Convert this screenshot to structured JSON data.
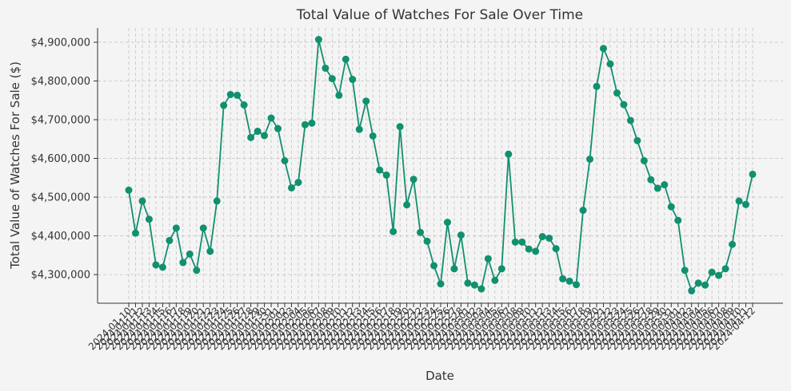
{
  "chart_data": {
    "type": "line",
    "title": "Total Value of Watches For Sale Over Time",
    "x_label": "Date",
    "y_label": "Total Value of Watches For Sale ($)",
    "color": "#11906f",
    "grid": true,
    "categories": [
      "2024-01-10",
      "2024-01-11",
      "2024-01-12",
      "2024-01-13",
      "2024-01-14",
      "2024-01-15",
      "2024-01-16",
      "2024-01-17",
      "2024-01-18",
      "2024-01-19",
      "2024-01-20",
      "2024-01-21",
      "2024-01-22",
      "2024-01-23",
      "2024-01-24",
      "2024-01-25",
      "2024-01-26",
      "2024-01-27",
      "2024-01-28",
      "2024-01-29",
      "2024-01-30",
      "2024-01-31",
      "2024-02-01",
      "2024-02-02",
      "2024-02-03",
      "2024-02-04",
      "2024-02-05",
      "2024-02-06",
      "2024-02-07",
      "2024-02-08",
      "2024-02-09",
      "2024-02-10",
      "2024-02-11",
      "2024-02-12",
      "2024-02-13",
      "2024-02-14",
      "2024-02-15",
      "2024-02-16",
      "2024-02-17",
      "2024-02-18",
      "2024-02-19",
      "2024-02-20",
      "2024-02-21",
      "2024-02-22",
      "2024-02-23",
      "2024-02-24",
      "2024-02-25",
      "2024-02-26",
      "2024-02-27",
      "2024-02-28",
      "2024-03-01",
      "2024-03-02",
      "2024-03-03",
      "2024-03-04",
      "2024-03-05",
      "2024-03-06",
      "2024-03-07",
      "2024-03-08",
      "2024-03-09",
      "2024-03-10",
      "2024-03-11",
      "2024-03-12",
      "2024-03-13",
      "2024-03-14",
      "2024-03-15",
      "2024-03-16",
      "2024-03-17",
      "2024-03-18",
      "2024-03-19",
      "2024-03-20",
      "2024-03-21",
      "2024-03-22",
      "2024-03-23",
      "2024-03-24",
      "2024-03-25",
      "2024-03-26",
      "2024-03-27",
      "2024-03-28",
      "2024-03-29",
      "2024-03-30",
      "2024-03-31",
      "2024-04-01",
      "2024-04-02",
      "2024-04-03",
      "2024-04-04",
      "2024-04-05",
      "2024-04-06",
      "2024-04-07",
      "2024-04-08",
      "2024-04-09",
      "2024-04-10",
      "2024-04-11",
      "2024-04-12"
    ],
    "values": [
      4518000,
      4407000,
      4490000,
      4443000,
      4325000,
      4319000,
      4388000,
      4420000,
      4331000,
      4353000,
      4311000,
      4420000,
      4360000,
      4490000,
      4737000,
      4765000,
      4763000,
      4738000,
      4654000,
      4670000,
      4659000,
      4704000,
      4677000,
      4594000,
      4524000,
      4538000,
      4687000,
      4691000,
      4907000,
      4833000,
      4806000,
      4763000,
      4856000,
      4804000,
      4675000,
      4748000,
      4658000,
      4570000,
      4557000,
      4411000,
      4682000,
      4480000,
      4546000,
      4409000,
      4386000,
      4323000,
      4276000,
      4435000,
      4315000,
      4402000,
      4278000,
      4273000,
      4263000,
      4341000,
      4285000,
      4315000,
      4611000,
      4384000,
      4384000,
      4366000,
      4360000,
      4398000,
      4394000,
      4367000,
      4289000,
      4283000,
      4274000,
      4466000,
      4598000,
      4786000,
      4884000,
      4844000,
      4769000,
      4739000,
      4698000,
      4646000,
      4594000,
      4545000,
      4523000,
      4532000,
      4475000,
      4440000,
      4311000,
      4258000,
      4278000,
      4273000,
      4306000,
      4298000,
      4315000,
      4378000,
      4490000,
      4481000,
      4559000
    ],
    "ylim": [
      4226000,
      4937000
    ],
    "yticks": [
      {
        "value": 4300000,
        "label": "$4,300,000"
      },
      {
        "value": 4400000,
        "label": "$4,400,000"
      },
      {
        "value": 4500000,
        "label": "$4,500,000"
      },
      {
        "value": 4600000,
        "label": "$4,600,000"
      },
      {
        "value": 4700000,
        "label": "$4,700,000"
      },
      {
        "value": 4800000,
        "label": "$4,800,000"
      },
      {
        "value": 4900000,
        "label": "$4,900,000"
      }
    ]
  }
}
